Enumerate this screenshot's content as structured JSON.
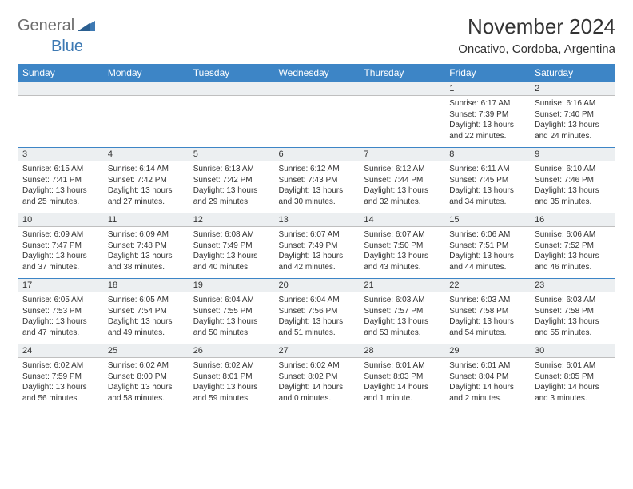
{
  "brand": {
    "part1": "General",
    "part2": "Blue"
  },
  "title": "November 2024",
  "location": "Oncativo, Cordoba, Argentina",
  "colors": {
    "header_bg": "#3d85c6",
    "header_text": "#ffffff",
    "daynum_bg": "#eceff1",
    "daynum_border_top": "#3d85c6",
    "body_text": "#333333",
    "logo_gray": "#6c6c6c",
    "logo_blue": "#3d79b3"
  },
  "weekdays": [
    "Sunday",
    "Monday",
    "Tuesday",
    "Wednesday",
    "Thursday",
    "Friday",
    "Saturday"
  ],
  "weeks": [
    [
      {
        "n": "",
        "sunrise": "",
        "sunset": "",
        "daylight": ""
      },
      {
        "n": "",
        "sunrise": "",
        "sunset": "",
        "daylight": ""
      },
      {
        "n": "",
        "sunrise": "",
        "sunset": "",
        "daylight": ""
      },
      {
        "n": "",
        "sunrise": "",
        "sunset": "",
        "daylight": ""
      },
      {
        "n": "",
        "sunrise": "",
        "sunset": "",
        "daylight": ""
      },
      {
        "n": "1",
        "sunrise": "Sunrise: 6:17 AM",
        "sunset": "Sunset: 7:39 PM",
        "daylight": "Daylight: 13 hours and 22 minutes."
      },
      {
        "n": "2",
        "sunrise": "Sunrise: 6:16 AM",
        "sunset": "Sunset: 7:40 PM",
        "daylight": "Daylight: 13 hours and 24 minutes."
      }
    ],
    [
      {
        "n": "3",
        "sunrise": "Sunrise: 6:15 AM",
        "sunset": "Sunset: 7:41 PM",
        "daylight": "Daylight: 13 hours and 25 minutes."
      },
      {
        "n": "4",
        "sunrise": "Sunrise: 6:14 AM",
        "sunset": "Sunset: 7:42 PM",
        "daylight": "Daylight: 13 hours and 27 minutes."
      },
      {
        "n": "5",
        "sunrise": "Sunrise: 6:13 AM",
        "sunset": "Sunset: 7:42 PM",
        "daylight": "Daylight: 13 hours and 29 minutes."
      },
      {
        "n": "6",
        "sunrise": "Sunrise: 6:12 AM",
        "sunset": "Sunset: 7:43 PM",
        "daylight": "Daylight: 13 hours and 30 minutes."
      },
      {
        "n": "7",
        "sunrise": "Sunrise: 6:12 AM",
        "sunset": "Sunset: 7:44 PM",
        "daylight": "Daylight: 13 hours and 32 minutes."
      },
      {
        "n": "8",
        "sunrise": "Sunrise: 6:11 AM",
        "sunset": "Sunset: 7:45 PM",
        "daylight": "Daylight: 13 hours and 34 minutes."
      },
      {
        "n": "9",
        "sunrise": "Sunrise: 6:10 AM",
        "sunset": "Sunset: 7:46 PM",
        "daylight": "Daylight: 13 hours and 35 minutes."
      }
    ],
    [
      {
        "n": "10",
        "sunrise": "Sunrise: 6:09 AM",
        "sunset": "Sunset: 7:47 PM",
        "daylight": "Daylight: 13 hours and 37 minutes."
      },
      {
        "n": "11",
        "sunrise": "Sunrise: 6:09 AM",
        "sunset": "Sunset: 7:48 PM",
        "daylight": "Daylight: 13 hours and 38 minutes."
      },
      {
        "n": "12",
        "sunrise": "Sunrise: 6:08 AM",
        "sunset": "Sunset: 7:49 PM",
        "daylight": "Daylight: 13 hours and 40 minutes."
      },
      {
        "n": "13",
        "sunrise": "Sunrise: 6:07 AM",
        "sunset": "Sunset: 7:49 PM",
        "daylight": "Daylight: 13 hours and 42 minutes."
      },
      {
        "n": "14",
        "sunrise": "Sunrise: 6:07 AM",
        "sunset": "Sunset: 7:50 PM",
        "daylight": "Daylight: 13 hours and 43 minutes."
      },
      {
        "n": "15",
        "sunrise": "Sunrise: 6:06 AM",
        "sunset": "Sunset: 7:51 PM",
        "daylight": "Daylight: 13 hours and 44 minutes."
      },
      {
        "n": "16",
        "sunrise": "Sunrise: 6:06 AM",
        "sunset": "Sunset: 7:52 PM",
        "daylight": "Daylight: 13 hours and 46 minutes."
      }
    ],
    [
      {
        "n": "17",
        "sunrise": "Sunrise: 6:05 AM",
        "sunset": "Sunset: 7:53 PM",
        "daylight": "Daylight: 13 hours and 47 minutes."
      },
      {
        "n": "18",
        "sunrise": "Sunrise: 6:05 AM",
        "sunset": "Sunset: 7:54 PM",
        "daylight": "Daylight: 13 hours and 49 minutes."
      },
      {
        "n": "19",
        "sunrise": "Sunrise: 6:04 AM",
        "sunset": "Sunset: 7:55 PM",
        "daylight": "Daylight: 13 hours and 50 minutes."
      },
      {
        "n": "20",
        "sunrise": "Sunrise: 6:04 AM",
        "sunset": "Sunset: 7:56 PM",
        "daylight": "Daylight: 13 hours and 51 minutes."
      },
      {
        "n": "21",
        "sunrise": "Sunrise: 6:03 AM",
        "sunset": "Sunset: 7:57 PM",
        "daylight": "Daylight: 13 hours and 53 minutes."
      },
      {
        "n": "22",
        "sunrise": "Sunrise: 6:03 AM",
        "sunset": "Sunset: 7:58 PM",
        "daylight": "Daylight: 13 hours and 54 minutes."
      },
      {
        "n": "23",
        "sunrise": "Sunrise: 6:03 AM",
        "sunset": "Sunset: 7:58 PM",
        "daylight": "Daylight: 13 hours and 55 minutes."
      }
    ],
    [
      {
        "n": "24",
        "sunrise": "Sunrise: 6:02 AM",
        "sunset": "Sunset: 7:59 PM",
        "daylight": "Daylight: 13 hours and 56 minutes."
      },
      {
        "n": "25",
        "sunrise": "Sunrise: 6:02 AM",
        "sunset": "Sunset: 8:00 PM",
        "daylight": "Daylight: 13 hours and 58 minutes."
      },
      {
        "n": "26",
        "sunrise": "Sunrise: 6:02 AM",
        "sunset": "Sunset: 8:01 PM",
        "daylight": "Daylight: 13 hours and 59 minutes."
      },
      {
        "n": "27",
        "sunrise": "Sunrise: 6:02 AM",
        "sunset": "Sunset: 8:02 PM",
        "daylight": "Daylight: 14 hours and 0 minutes."
      },
      {
        "n": "28",
        "sunrise": "Sunrise: 6:01 AM",
        "sunset": "Sunset: 8:03 PM",
        "daylight": "Daylight: 14 hours and 1 minute."
      },
      {
        "n": "29",
        "sunrise": "Sunrise: 6:01 AM",
        "sunset": "Sunset: 8:04 PM",
        "daylight": "Daylight: 14 hours and 2 minutes."
      },
      {
        "n": "30",
        "sunrise": "Sunrise: 6:01 AM",
        "sunset": "Sunset: 8:05 PM",
        "daylight": "Daylight: 14 hours and 3 minutes."
      }
    ]
  ]
}
